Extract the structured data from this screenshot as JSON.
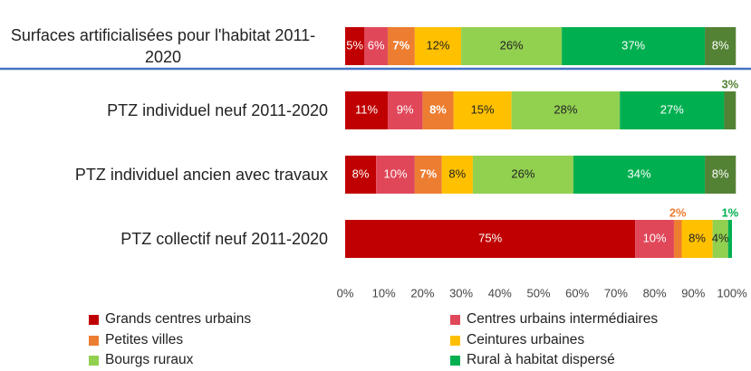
{
  "chart_data": {
    "type": "stacked_bar_horizontal",
    "categories": [
      "Surfaces artificialisées pour l'habitat 2011-2020",
      "PTZ individuel neuf 2011-2020",
      "PTZ individuel ancien avec travaux",
      "PTZ collectif neuf 2011-2020"
    ],
    "series": [
      {
        "name": "Grands centres urbains",
        "color": "#c00000",
        "values": [
          5,
          11,
          8,
          75
        ],
        "value_labels": [
          "5%",
          "11%",
          "8%",
          "75%"
        ]
      },
      {
        "name": "Centres urbains intermédiaires",
        "color": "#e0485a",
        "values": [
          6,
          9,
          10,
          10
        ],
        "value_labels": [
          "6%",
          "9%",
          "10%",
          "10%"
        ]
      },
      {
        "name": "Petites villes",
        "color": "#ed7d31",
        "values": [
          7,
          8,
          7,
          2
        ],
        "value_labels": [
          "7%",
          "8%",
          "7%",
          "2%"
        ]
      },
      {
        "name": "Ceintures urbaines",
        "color": "#ffc000",
        "values": [
          12,
          15,
          8,
          8
        ],
        "value_labels": [
          "12%",
          "15%",
          "8%",
          "8%"
        ]
      },
      {
        "name": "Bourgs ruraux",
        "color": "#92d050",
        "values": [
          26,
          28,
          26,
          4
        ],
        "value_labels": [
          "26%",
          "28%",
          "26%",
          "4%"
        ]
      },
      {
        "name": "Rural à habitat dispersé",
        "color": "#00b050",
        "values": [
          37,
          27,
          34,
          1
        ],
        "value_labels": [
          "37%",
          "27%",
          "34%",
          "1%"
        ]
      },
      {
        "color": "#548235",
        "values": [
          8,
          3,
          8,
          0
        ],
        "value_labels": [
          "8%",
          "3%",
          "8%",
          null
        ]
      }
    ],
    "xlim": [
      0,
      100
    ],
    "xticks": [
      {
        "value": 0,
        "label": "0%"
      },
      {
        "value": 10,
        "label": "10%"
      },
      {
        "value": 20,
        "label": "20%"
      },
      {
        "value": 30,
        "label": "30%"
      },
      {
        "value": 40,
        "label": "40%"
      },
      {
        "value": 50,
        "label": "50%"
      },
      {
        "value": 60,
        "label": "60%"
      },
      {
        "value": 70,
        "label": "70%"
      },
      {
        "value": 80,
        "label": "80%"
      },
      {
        "value": 90,
        "label": "90%"
      },
      {
        "value": 100,
        "label": "100%"
      }
    ],
    "legend": "bottom"
  }
}
